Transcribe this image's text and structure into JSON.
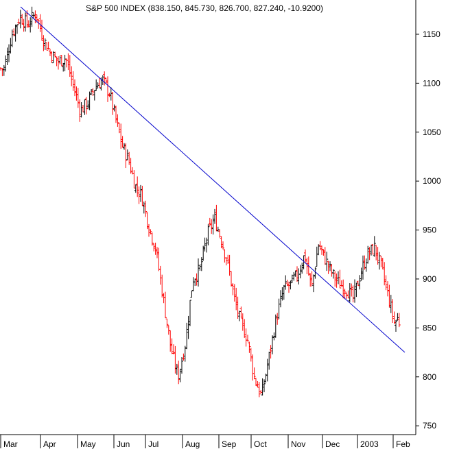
{
  "chart_data": {
    "type": "ohlc",
    "title": "S&P 500 INDEX (838.150, 845.730, 826.700, 827.240, -10.9200)",
    "y_ticks": [
      750,
      800,
      850,
      900,
      950,
      1000,
      1050,
      1100,
      1150
    ],
    "ylim": [
      741,
      1185
    ],
    "x_labels": [
      "Mar",
      "Apr",
      "May",
      "Jun",
      "Jul",
      "Aug",
      "Sep",
      "Oct",
      "Nov",
      "Dec",
      "2003",
      "Feb"
    ],
    "colors": {
      "up": "#000000",
      "down": "#ff0000",
      "trendline": "#0000cc",
      "axis": "#000000"
    },
    "trendline": {
      "start": {
        "x": "Mar",
        "y": 1178
      },
      "end": {
        "x": "Feb",
        "y": 825
      }
    },
    "last_bar": {
      "open": 838.15,
      "high": 845.73,
      "low": 826.7,
      "close": 827.24,
      "change": -10.92
    },
    "series": [
      {
        "values": [
          {
            "month": "Mar",
            "close": 1115
          },
          {
            "month": "Mar",
            "close": 1150
          },
          {
            "month": "Mar",
            "close": 1168
          },
          {
            "month": "Mar",
            "close": 1160
          },
          {
            "month": "Mar",
            "close": 1172
          },
          {
            "month": "Apr",
            "close": 1145
          },
          {
            "month": "Apr",
            "close": 1130
          },
          {
            "month": "Apr",
            "close": 1122
          },
          {
            "month": "Apr",
            "close": 1126
          },
          {
            "month": "Apr",
            "close": 1098
          },
          {
            "month": "May",
            "close": 1072
          },
          {
            "month": "May",
            "close": 1080
          },
          {
            "month": "May",
            "close": 1096
          },
          {
            "month": "May",
            "close": 1104
          },
          {
            "month": "May",
            "close": 1090
          },
          {
            "month": "Jun",
            "close": 1060
          },
          {
            "month": "Jun",
            "close": 1035
          },
          {
            "month": "Jun",
            "close": 1020
          },
          {
            "month": "Jun",
            "close": 995
          },
          {
            "month": "Jun",
            "close": 985
          },
          {
            "month": "Jul",
            "close": 955
          },
          {
            "month": "Jul",
            "close": 930
          },
          {
            "month": "Jul",
            "close": 880
          },
          {
            "month": "Jul",
            "close": 830
          },
          {
            "month": "Jul",
            "close": 800
          },
          {
            "month": "Aug",
            "close": 835
          },
          {
            "month": "Aug",
            "close": 900
          },
          {
            "month": "Aug",
            "close": 910
          },
          {
            "month": "Aug",
            "close": 945
          },
          {
            "month": "Aug",
            "close": 962
          },
          {
            "month": "Sep",
            "close": 940
          },
          {
            "month": "Sep",
            "close": 915
          },
          {
            "month": "Sep",
            "close": 880
          },
          {
            "month": "Sep",
            "close": 855
          },
          {
            "month": "Sep",
            "close": 840
          },
          {
            "month": "Oct",
            "close": 800
          },
          {
            "month": "Oct",
            "close": 780
          },
          {
            "month": "Oct",
            "close": 820
          },
          {
            "month": "Oct",
            "close": 860
          },
          {
            "month": "Oct",
            "close": 890
          },
          {
            "month": "Nov",
            "close": 895
          },
          {
            "month": "Nov",
            "close": 905
          },
          {
            "month": "Nov",
            "close": 925
          },
          {
            "month": "Nov",
            "close": 890
          },
          {
            "month": "Nov",
            "close": 935
          },
          {
            "month": "Dec",
            "close": 920
          },
          {
            "month": "Dec",
            "close": 905
          },
          {
            "month": "Dec",
            "close": 895
          },
          {
            "month": "Dec",
            "close": 890
          },
          {
            "month": "Dec",
            "close": 880
          },
          {
            "month": "2003",
            "close": 905
          },
          {
            "month": "2003",
            "close": 925
          },
          {
            "month": "2003",
            "close": 932
          },
          {
            "month": "2003",
            "close": 910
          },
          {
            "month": "2003",
            "close": 880
          },
          {
            "month": "Feb",
            "close": 855
          },
          {
            "month": "Feb",
            "close": 860
          },
          {
            "month": "Feb",
            "close": 845
          },
          {
            "month": "Feb",
            "close": 838
          },
          {
            "month": "Feb",
            "close": 827
          }
        ]
      }
    ]
  }
}
